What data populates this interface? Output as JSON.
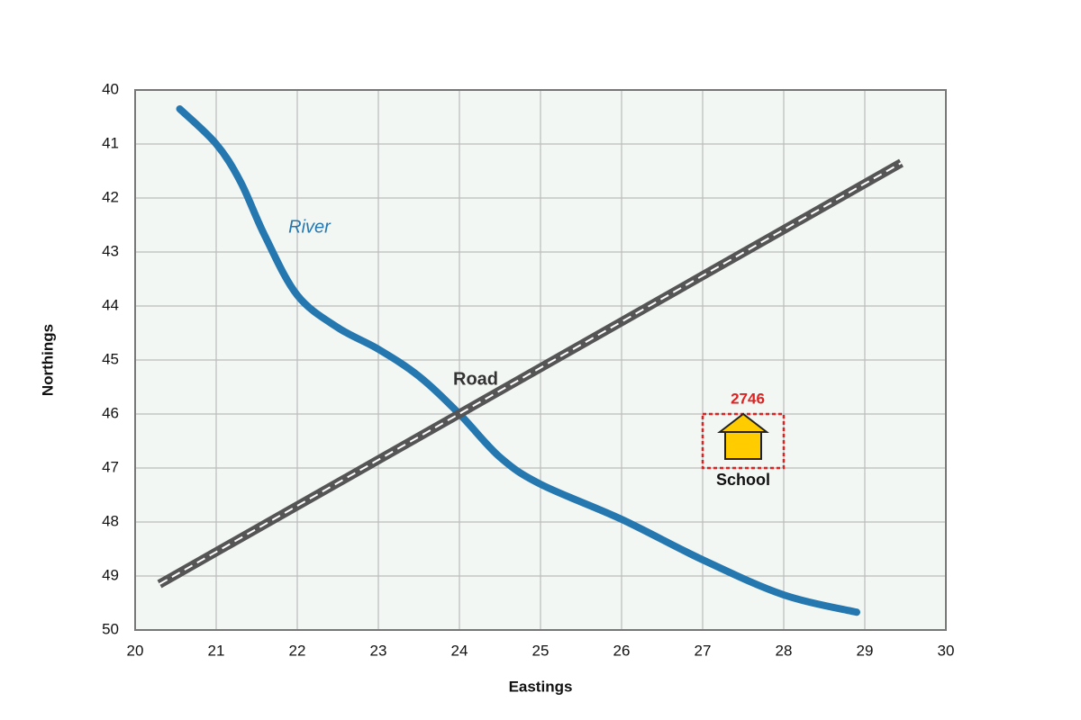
{
  "map": {
    "x_label": "Eastings",
    "y_label": "Northings",
    "xlim": [
      20,
      30
    ],
    "ylim": [
      40,
      50
    ],
    "xticks": [
      20,
      21,
      22,
      23,
      24,
      25,
      26,
      27,
      28,
      29,
      30
    ],
    "yticks": [
      40,
      41,
      42,
      43,
      44,
      45,
      46,
      47,
      48,
      49,
      50
    ],
    "grid": true,
    "river": {
      "label": "River",
      "color": "#2577b0",
      "x": [
        20.55,
        21.0,
        21.3,
        21.6,
        22.0,
        22.5,
        23.0,
        23.5,
        24.0,
        24.5,
        25.0,
        26.0,
        27.0,
        28.0,
        28.9
      ],
      "y": [
        40.35,
        41.0,
        41.7,
        42.7,
        43.8,
        44.4,
        44.8,
        45.3,
        46.0,
        46.8,
        47.3,
        47.95,
        48.7,
        49.35,
        49.67
      ]
    },
    "road": {
      "label": "Road",
      "color": "#555555",
      "x": [
        20.3,
        29.45
      ],
      "y": [
        49.15,
        41.35
      ]
    },
    "school": {
      "label": "School",
      "grid_ref": "2746",
      "color": "#ffcc00",
      "box_color": "#dd2222",
      "x": [
        27,
        28
      ],
      "y": [
        46,
        47
      ]
    }
  }
}
